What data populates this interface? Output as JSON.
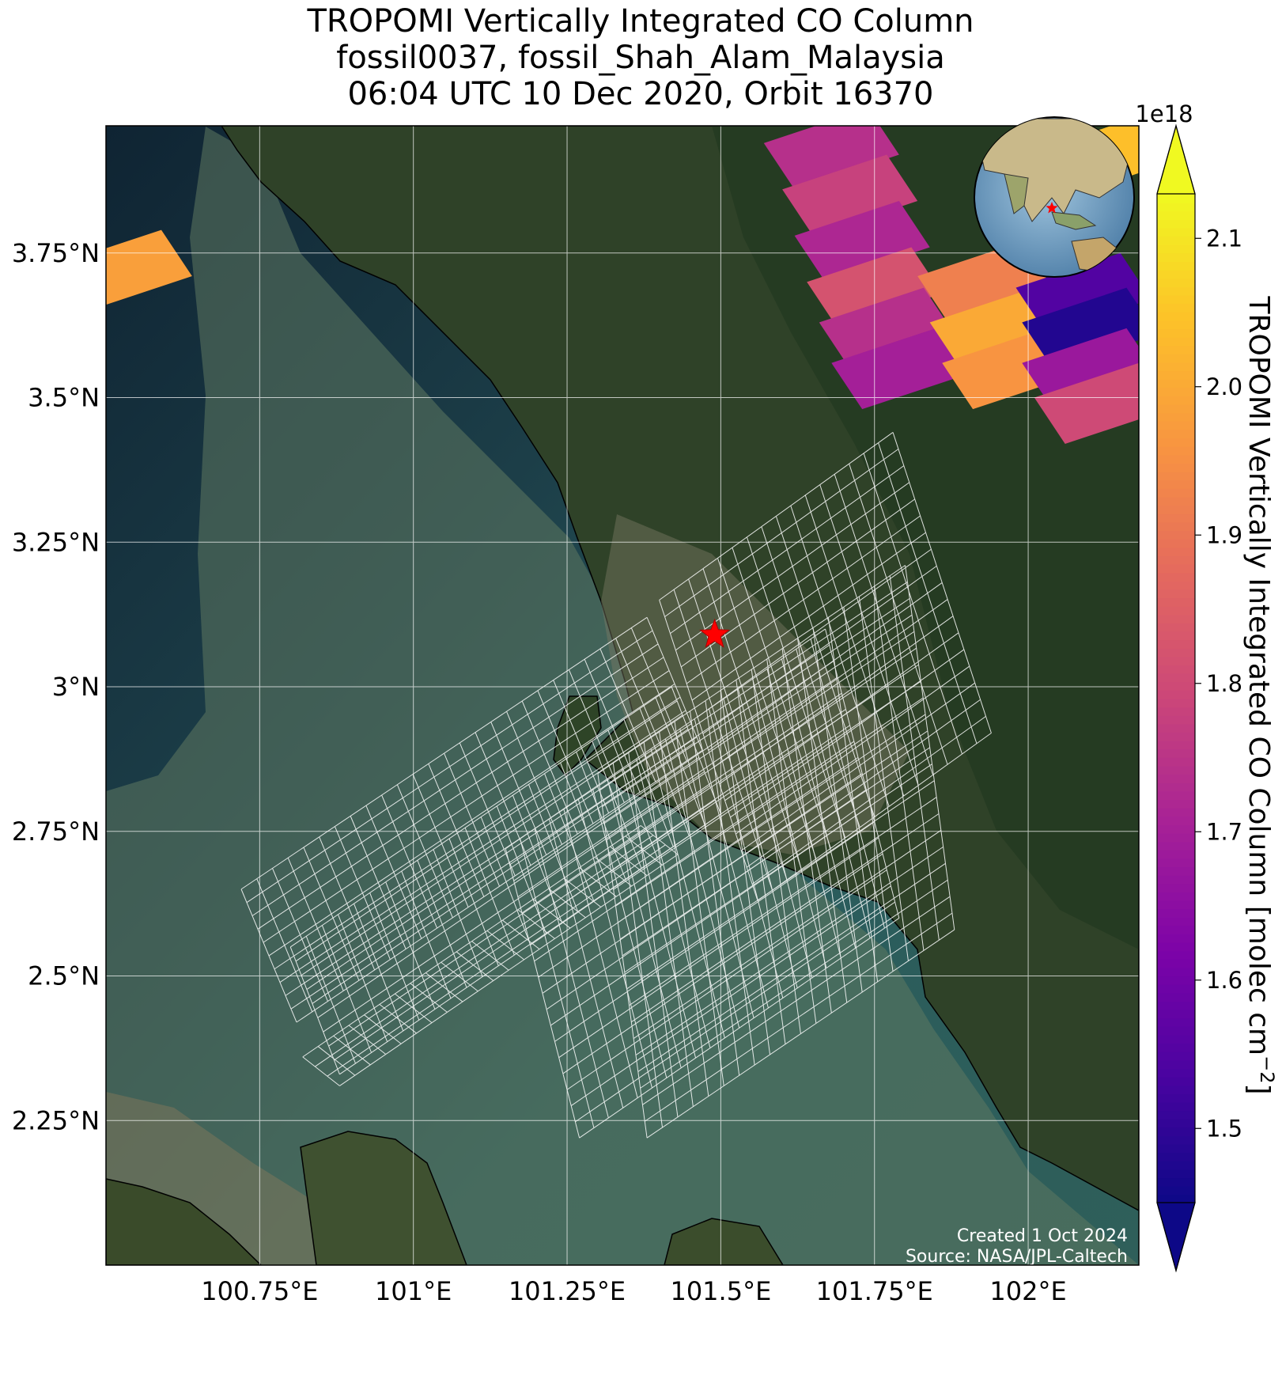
{
  "title_lines": [
    "TROPOMI Vertically Integrated CO Column",
    "fossil0037, fossil_Shah_Alam_Malaysia",
    "06:04 UTC 10 Dec 2020, Orbit 16370"
  ],
  "colorbar": {
    "label": "TROPOMI Vertically Integrated CO Column [molec cm",
    "label_sup": "−2",
    "label_close": "]",
    "multiplier": "1e18",
    "min": 1.45,
    "max": 2.13,
    "ticks": [
      "1.5",
      "1.6",
      "1.7",
      "1.8",
      "1.9",
      "2.0",
      "2.1"
    ],
    "tick_values": [
      1.5,
      1.6,
      1.7,
      1.8,
      1.9,
      2.0,
      2.1
    ],
    "colormap": "plasma"
  },
  "map": {
    "lon_range": [
      100.5,
      102.18
    ],
    "lat_range": [
      2.0,
      3.97
    ],
    "lon_ticks": [
      "100.75°E",
      "101°E",
      "101.25°E",
      "101.5°E",
      "101.75°E",
      "102°E"
    ],
    "lon_tick_values": [
      100.75,
      101.0,
      101.25,
      101.5,
      101.75,
      102.0
    ],
    "lat_ticks": [
      "2.25°N",
      "2.5°N",
      "2.75°N",
      "3°N",
      "3.25°N",
      "3.5°N",
      "3.75°N"
    ],
    "lat_tick_values": [
      2.25,
      2.5,
      2.75,
      3.0,
      3.25,
      3.5,
      3.75
    ],
    "target": {
      "name": "fossil_Shah_Alam_Malaysia",
      "lon": 101.49,
      "lat": 3.09
    },
    "credits": [
      "Created 1 Oct 2024",
      "Source: NASA/JPL-Caltech"
    ]
  },
  "chart_data": {
    "type": "heatmap",
    "title": "TROPOMI Vertically Integrated CO Column",
    "units": "molec cm−2",
    "scale": "1e18",
    "pixels": [
      {
        "lon": 101.68,
        "lat": 3.93,
        "value": 1.74
      },
      {
        "lon": 101.71,
        "lat": 3.85,
        "value": 1.78
      },
      {
        "lon": 101.73,
        "lat": 3.77,
        "value": 1.72
      },
      {
        "lon": 101.75,
        "lat": 3.69,
        "value": 1.82
      },
      {
        "lon": 101.77,
        "lat": 3.62,
        "value": 1.74
      },
      {
        "lon": 101.79,
        "lat": 3.55,
        "value": 1.7
      },
      {
        "lon": 101.93,
        "lat": 3.7,
        "value": 1.92
      },
      {
        "lon": 101.95,
        "lat": 3.62,
        "value": 2.0
      },
      {
        "lon": 101.97,
        "lat": 3.55,
        "value": 1.96
      },
      {
        "lon": 102.09,
        "lat": 3.68,
        "value": 1.55
      },
      {
        "lon": 102.1,
        "lat": 3.62,
        "value": 1.48
      },
      {
        "lon": 102.1,
        "lat": 3.55,
        "value": 1.68
      },
      {
        "lon": 102.12,
        "lat": 3.49,
        "value": 1.8
      },
      {
        "lon": 100.53,
        "lat": 3.72,
        "value": 1.98
      },
      {
        "lon": 102.16,
        "lat": 3.93,
        "value": 2.04
      }
    ]
  }
}
